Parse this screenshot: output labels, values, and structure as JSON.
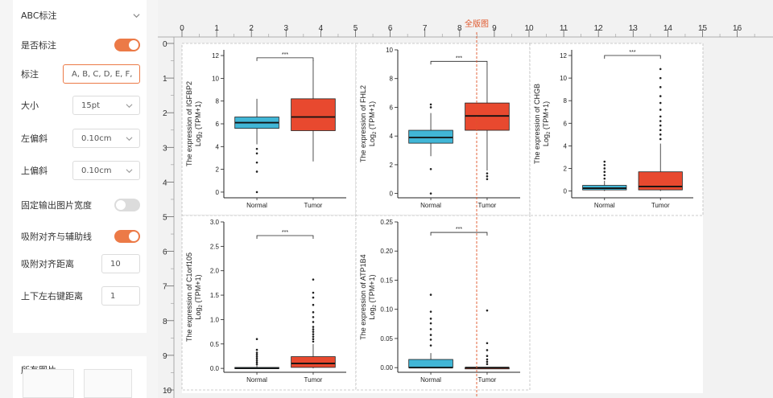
{
  "panel": {
    "section_title": "ABC标注",
    "show_label": {
      "label": "是否标注",
      "on": true
    },
    "label_field": {
      "label": "标注",
      "value": "A, B, C, D, E, F,"
    },
    "size_field": {
      "label": "大小",
      "value": "15pt"
    },
    "left_offset": {
      "label": "左偏斜",
      "value": "0.10cm"
    },
    "top_offset": {
      "label": "上偏斜",
      "value": "0.10cm"
    },
    "fixed_width": {
      "label": "固定输出图片宽度",
      "on": false
    },
    "snap_align": {
      "label": "吸附对齐与辅助线",
      "on": true
    },
    "snap_distance": {
      "label": "吸附对齐距离",
      "value": "10"
    },
    "arrow_distance": {
      "label": "上下左右键距离",
      "value": "1"
    },
    "all_images_title": "所有图片"
  },
  "canvas": {
    "guide_label": "全版图",
    "ruler_top": [
      "0",
      "1",
      "2",
      "3",
      "4",
      "5",
      "6",
      "7",
      "8",
      "9",
      "10",
      "11",
      "12",
      "13",
      "14",
      "15",
      "16"
    ],
    "ruler_left": [
      "0",
      "1",
      "2",
      "3",
      "4",
      "5",
      "6",
      "7",
      "8",
      "9",
      "10"
    ],
    "accent_color": "#e0562a"
  },
  "colors": {
    "normal": "#41b6d6",
    "tumor": "#e8492f",
    "toggle_on": "#ec7a47"
  },
  "plots": [
    {
      "gene": "IGFBP2",
      "y_title": "The expression of IGFBP2",
      "y_sub": "Log",
      "y_sub2": "2",
      "y_sub3": " (TPM+1)",
      "significance": "***",
      "groups": [
        "Normal",
        "Tumor"
      ],
      "ylim": [
        -0.5,
        12.5
      ],
      "yticks": [
        0,
        2,
        4,
        6,
        8,
        10,
        12
      ],
      "ytick_labels": [
        "0",
        "2",
        "4",
        "6",
        "8",
        "10",
        "12"
      ],
      "sig_y": 11.8,
      "boxes": [
        {
          "min": 4.2,
          "q1": 5.6,
          "median": 6.1,
          "q3": 6.6,
          "max": 8.2,
          "outliers": [
            3.8,
            3.4,
            2.6,
            1.8,
            0.0
          ]
        },
        {
          "min": 2.7,
          "q1": 5.4,
          "median": 6.6,
          "q3": 8.2,
          "max": 11.6,
          "outliers": []
        }
      ]
    },
    {
      "gene": "FHL2",
      "y_title": "The expression of FHL2",
      "y_sub": "Log",
      "y_sub2": "2",
      "y_sub3": " (TPM+1)",
      "significance": "***",
      "groups": [
        "Normal",
        "Tumor"
      ],
      "ylim": [
        -0.3,
        10.0
      ],
      "yticks": [
        0,
        2,
        4,
        6,
        8,
        10
      ],
      "ytick_labels": [
        "0",
        "2",
        "4",
        "6",
        "8",
        "10"
      ],
      "sig_y": 9.2,
      "boxes": [
        {
          "min": 2.6,
          "q1": 3.5,
          "median": 3.9,
          "q3": 4.4,
          "max": 5.6,
          "outliers": [
            6.0,
            6.2,
            1.7,
            0.0
          ]
        },
        {
          "min": 1.6,
          "q1": 4.4,
          "median": 5.4,
          "q3": 6.3,
          "max": 9.0,
          "outliers": [
            1.4,
            1.2,
            1.0
          ]
        }
      ]
    },
    {
      "gene": "CHGB",
      "y_title": "The expression of CHGB",
      "y_sub": "Log",
      "y_sub2": "2",
      "y_sub3": " (TPM+1)",
      "significance": "***",
      "groups": [
        "Normal",
        "Tumor"
      ],
      "ylim": [
        -0.6,
        12.5
      ],
      "yticks": [
        0,
        2,
        4,
        6,
        8,
        10,
        12
      ],
      "ytick_labels": [
        "0",
        "2",
        "4",
        "6",
        "8",
        "10",
        "12"
      ],
      "sig_y": 12.0,
      "boxes": [
        {
          "min": 0.0,
          "q1": 0.1,
          "median": 0.25,
          "q3": 0.5,
          "max": 0.9,
          "outliers": [
            1.1,
            1.4,
            1.7,
            2.0,
            2.3,
            2.6
          ]
        },
        {
          "min": 0.0,
          "q1": 0.1,
          "median": 0.4,
          "q3": 1.7,
          "max": 4.2,
          "outliers": [
            4.6,
            5.0,
            5.4,
            5.8,
            6.2,
            6.6,
            7.2,
            7.8,
            8.4,
            9.2,
            10.0,
            10.8
          ]
        }
      ]
    },
    {
      "gene": "C1orf105",
      "y_title": "The expression of C1orf105",
      "y_sub": "Log",
      "y_sub2": "2",
      "y_sub3": " (TPM+1)",
      "significance": "***",
      "groups": [
        "Normal",
        "Tumor"
      ],
      "ylim": [
        -0.08,
        3.0
      ],
      "yticks": [
        0,
        0.5,
        1.0,
        1.5,
        2.0,
        2.5,
        3.0
      ],
      "ytick_labels": [
        "0.0",
        "0.5",
        "1.0",
        "1.5",
        "2.0",
        "2.5",
        "3.0"
      ],
      "sig_y": 2.72,
      "boxes": [
        {
          "min": 0.0,
          "q1": 0.0,
          "median": 0.0,
          "q3": 0.02,
          "max": 0.05,
          "outliers": [
            0.08,
            0.12,
            0.16,
            0.2,
            0.24,
            0.28,
            0.32,
            0.38,
            0.6
          ]
        },
        {
          "min": 0.0,
          "q1": 0.02,
          "median": 0.1,
          "q3": 0.24,
          "max": 0.5,
          "outliers": [
            0.55,
            0.6,
            0.65,
            0.7,
            0.75,
            0.8,
            0.85,
            0.95,
            1.05,
            1.15,
            1.3,
            1.45,
            1.55,
            1.82
          ]
        }
      ]
    },
    {
      "gene": "ATP1B4",
      "y_title": "The expression of ATP1B4",
      "y_sub": "Log",
      "y_sub2": "2",
      "y_sub3": " (TPM+1)",
      "significance": "***",
      "groups": [
        "Normal",
        "Tumor"
      ],
      "ylim": [
        -0.008,
        0.25
      ],
      "yticks": [
        0,
        0.05,
        0.1,
        0.15,
        0.2,
        0.25
      ],
      "ytick_labels": [
        "0.00",
        "0.05",
        "0.10",
        "0.15",
        "0.20",
        "0.25"
      ],
      "sig_y": 0.232,
      "boxes": [
        {
          "min": 0.0,
          "q1": 0.0,
          "median": 0.0,
          "q3": 0.014,
          "max": 0.025,
          "outliers": [
            0.038,
            0.048,
            0.056,
            0.066,
            0.076,
            0.084,
            0.096,
            0.125
          ]
        },
        {
          "min": 0.0,
          "q1": 0.0,
          "median": 0.0,
          "q3": 0.0,
          "max": 0.0,
          "outliers": [
            0.006,
            0.01,
            0.014,
            0.02,
            0.03,
            0.042,
            0.098
          ]
        }
      ]
    }
  ]
}
